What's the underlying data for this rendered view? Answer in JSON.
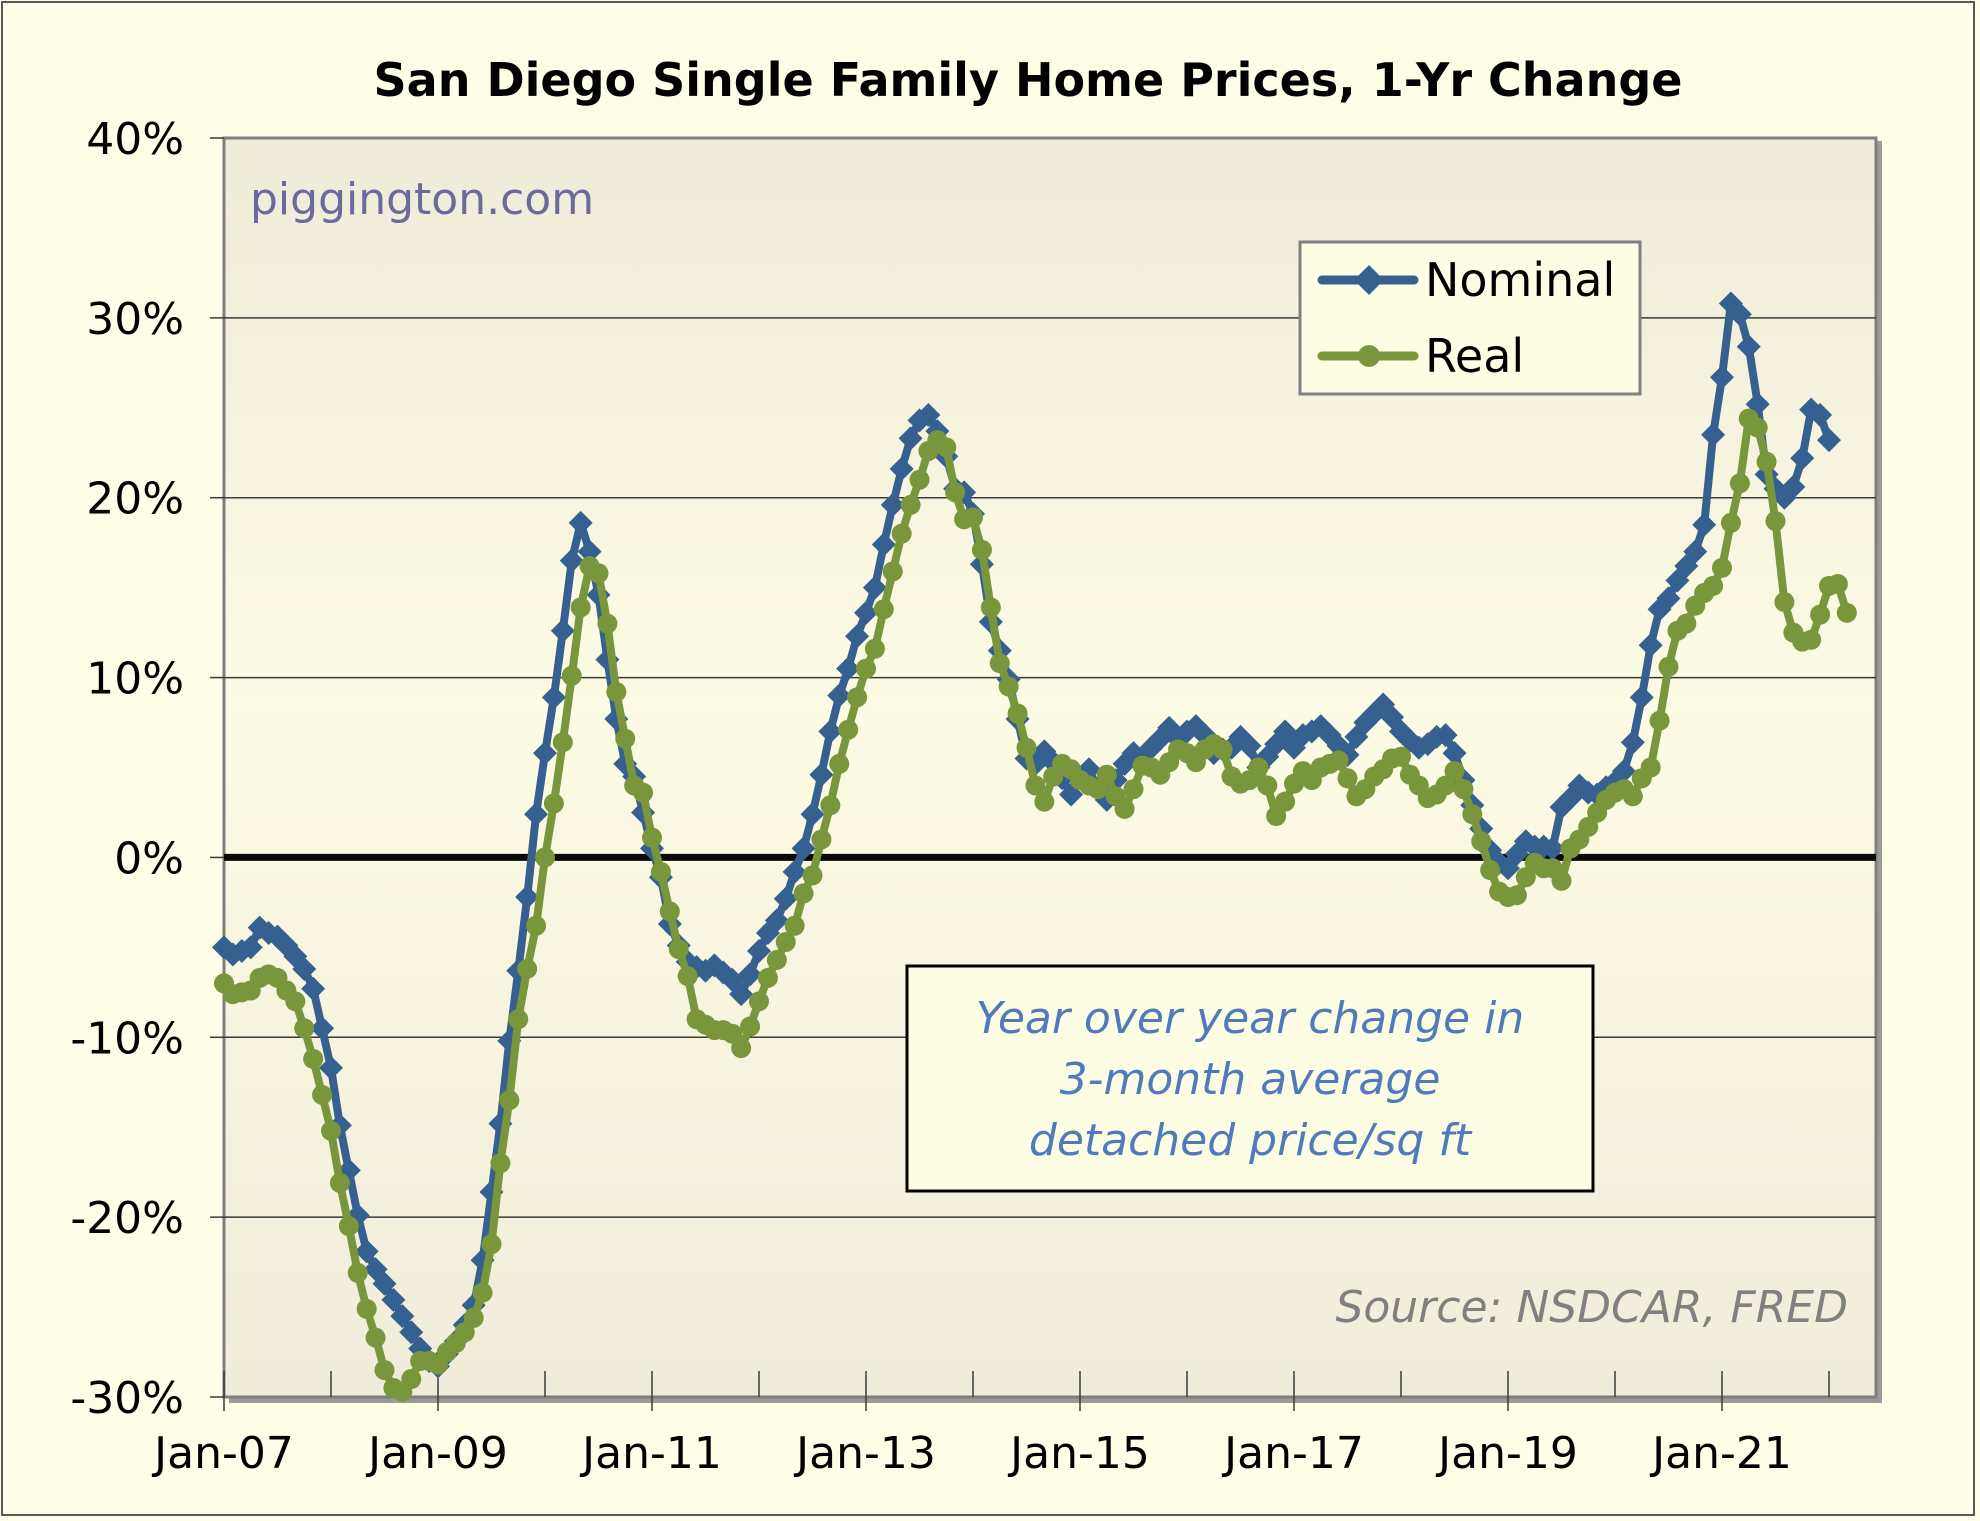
{
  "chart_data": {
    "type": "line",
    "title": "San Diego Single Family Home Prices, 1-Yr Change",
    "xlabel": "",
    "ylabel": "",
    "x_start": "Jan-07",
    "x_frequency": "monthly",
    "x_tick_labels": [
      "Jan-07",
      "Jan-09",
      "Jan-11",
      "Jan-13",
      "Jan-15",
      "Jan-17",
      "Jan-19",
      "Jan-21"
    ],
    "y_tick_labels": [
      "-30%",
      "-20%",
      "-10%",
      "0%",
      "10%",
      "20%",
      "30%",
      "40%"
    ],
    "ylim": [
      -30,
      40
    ],
    "y_unit": "%",
    "grid": true,
    "zero_line": true,
    "legend_position": "top-right",
    "series": [
      {
        "name": "Nominal",
        "color": "#35608f",
        "marker": "diamond",
        "values": [
          -5.0,
          -5.4,
          -5.2,
          -5.0,
          -3.9,
          -4.2,
          -4.4,
          -4.9,
          -5.5,
          -6.2,
          -7.3,
          -9.5,
          -11.7,
          -14.9,
          -17.4,
          -19.9,
          -21.9,
          -22.9,
          -23.7,
          -24.6,
          -25.5,
          -26.4,
          -27.3,
          -28.0,
          -28.3,
          -27.6,
          -26.9,
          -26.0,
          -24.9,
          -22.4,
          -18.6,
          -14.8,
          -10.2,
          -6.3,
          -2.2,
          2.4,
          5.8,
          8.9,
          12.6,
          16.5,
          18.6,
          17.0,
          14.6,
          11.0,
          7.7,
          5.2,
          4.5,
          2.5,
          0.5,
          -1.1,
          -3.7,
          -4.9,
          -5.8,
          -6.1,
          -6.3,
          -6.0,
          -6.4,
          -6.8,
          -7.6,
          -6.5,
          -5.2,
          -4.2,
          -3.5,
          -2.3,
          -0.8,
          0.5,
          2.4,
          4.6,
          7.0,
          9.0,
          10.5,
          12.3,
          13.6,
          15.0,
          17.4,
          19.6,
          21.6,
          23.3,
          24.3,
          24.6,
          23.7,
          22.3,
          20.5,
          20.3,
          19.1,
          16.3,
          13.1,
          11.5,
          9.9,
          7.7,
          5.5,
          5.2,
          5.9,
          5.3,
          4.4,
          3.5,
          4.4,
          4.9,
          3.8,
          3.2,
          4.3,
          5.2,
          5.8,
          5.4,
          6.1,
          6.6,
          7.2,
          6.6,
          7.0,
          7.3,
          6.8,
          5.8,
          6.0,
          6.1,
          6.7,
          6.2,
          5.0,
          5.6,
          6.3,
          7.0,
          6.1,
          6.8,
          7.0,
          7.3,
          6.8,
          6.2,
          5.7,
          6.7,
          7.5,
          8.0,
          8.5,
          7.8,
          7.0,
          6.5,
          6.1,
          6.3,
          6.7,
          6.8,
          5.8,
          4.3,
          2.9,
          1.6,
          0.4,
          -0.3,
          -0.6,
          0.2,
          0.9,
          0.6,
          0.6,
          0.5,
          2.8,
          3.3,
          4.0,
          3.6,
          3.5,
          3.9,
          4.2,
          4.8,
          6.4,
          8.9,
          11.8,
          13.8,
          14.4,
          15.4,
          16.2,
          17.0,
          18.5,
          23.5,
          26.7,
          30.8,
          30.2,
          28.4,
          25.2,
          21.3,
          20.5,
          20.0,
          20.6,
          22.2,
          24.9,
          24.6,
          23.2
        ]
      },
      {
        "name": "Real",
        "color": "#7a963c",
        "marker": "circle",
        "values": [
          -7.0,
          -7.6,
          -7.5,
          -7.4,
          -6.7,
          -6.5,
          -6.7,
          -7.4,
          -8.0,
          -9.5,
          -11.2,
          -13.2,
          -15.2,
          -18.1,
          -20.5,
          -23.1,
          -25.1,
          -26.7,
          -28.5,
          -29.5,
          -29.7,
          -29.0,
          -28.0,
          -28.0,
          -28.2,
          -27.5,
          -27.0,
          -26.4,
          -25.6,
          -24.2,
          -21.5,
          -17.0,
          -13.5,
          -9.0,
          -6.2,
          -3.8,
          0.0,
          3.0,
          6.4,
          10.1,
          13.9,
          16.2,
          15.8,
          13.0,
          9.2,
          6.6,
          4.0,
          3.6,
          1.1,
          -0.8,
          -3.0,
          -5.1,
          -6.6,
          -9.0,
          -9.3,
          -9.6,
          -9.6,
          -9.8,
          -10.6,
          -9.4,
          -8.0,
          -6.7,
          -5.7,
          -4.7,
          -3.8,
          -2.0,
          -1.0,
          1.0,
          2.9,
          5.2,
          7.1,
          8.9,
          10.5,
          11.6,
          13.8,
          15.9,
          18.0,
          19.6,
          21.0,
          22.6,
          23.2,
          22.8,
          20.3,
          18.8,
          18.9,
          17.1,
          13.9,
          10.8,
          9.5,
          8.0,
          6.1,
          4.0,
          3.1,
          4.5,
          5.2,
          4.9,
          4.3,
          4.0,
          3.8,
          4.6,
          3.4,
          2.7,
          3.8,
          5.1,
          5.0,
          4.6,
          5.3,
          6.0,
          5.8,
          5.3,
          6.0,
          6.3,
          6.0,
          4.5,
          4.1,
          4.3,
          5.0,
          4.0,
          2.3,
          3.1,
          4.1,
          4.8,
          4.3,
          5.0,
          5.2,
          5.4,
          4.4,
          3.4,
          3.8,
          4.5,
          4.9,
          5.5,
          5.6,
          4.6,
          4.0,
          3.3,
          3.5,
          4.0,
          4.8,
          3.8,
          2.4,
          0.9,
          -0.7,
          -1.9,
          -2.2,
          -2.1,
          -1.1,
          -0.3,
          -0.6,
          -0.6,
          -1.3,
          0.5,
          1.0,
          1.7,
          2.5,
          3.2,
          3.6,
          3.8,
          3.4,
          4.4,
          5.0,
          7.6,
          10.6,
          12.6,
          13.0,
          14.0,
          14.7,
          15.1,
          16.1,
          18.6,
          20.8,
          24.4,
          23.9,
          22.0,
          18.7,
          14.2,
          12.5,
          12.0,
          12.1,
          13.5,
          15.1,
          15.2,
          13.6
        ]
      }
    ],
    "annotations": [
      {
        "text": "piggington.com",
        "role": "watermark"
      },
      {
        "text": "Source: NSDCAR, FRED",
        "role": "source"
      },
      {
        "text": "Year over year change in 3-month average detached price/sq ft",
        "role": "note"
      }
    ]
  },
  "watermark": "piggington.com",
  "note_lines": [
    "Year over year change in",
    "3-month average",
    "detached price/sq ft"
  ],
  "source": "Source: NSDCAR, FRED",
  "colors": {
    "background": "#fefee6",
    "plot_top": "#f0ecdb",
    "plot_bottom": "#fdfce2",
    "nominal": "#35608f",
    "real": "#7a963c"
  }
}
